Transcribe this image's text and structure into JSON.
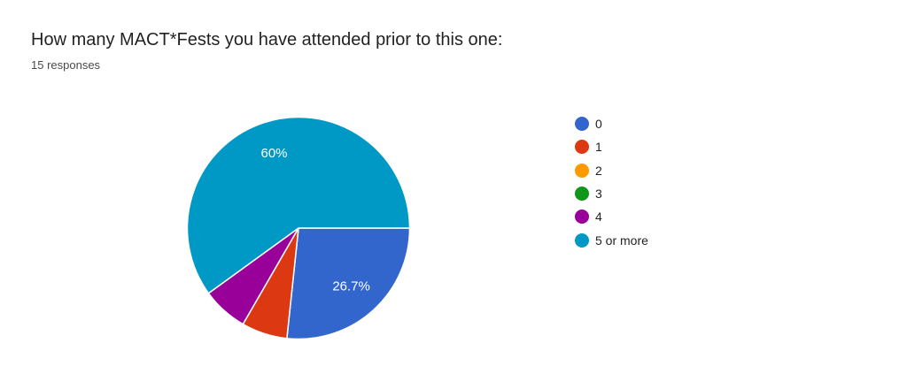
{
  "header": {
    "title": "How many MACT*Fests you have attended prior to this one:",
    "responses_label": "15 responses"
  },
  "chart_data": {
    "type": "pie",
    "title": "How many MACT*Fests you have attended prior to this one:",
    "total_responses": 15,
    "categories": [
      "0",
      "1",
      "2",
      "3",
      "4",
      "5 or more"
    ],
    "values": [
      4,
      1,
      0,
      0,
      1,
      9
    ],
    "percentages": [
      26.7,
      6.7,
      0,
      0,
      6.7,
      60
    ],
    "visible_slice_labels": [
      "26.7%",
      "60%"
    ],
    "colors": [
      "#3366CC",
      "#DC3912",
      "#FF9900",
      "#109618",
      "#990099",
      "#0099C6"
    ],
    "slice_label_color": "#FFFFFF",
    "legend_position": "right",
    "start_angle_deg": 90,
    "min_label_pct": 8
  },
  "legend": {
    "items": [
      {
        "label": "0",
        "color": "#3366CC"
      },
      {
        "label": "1",
        "color": "#DC3912"
      },
      {
        "label": "2",
        "color": "#FF9900"
      },
      {
        "label": "3",
        "color": "#109618"
      },
      {
        "label": "4",
        "color": "#990099"
      },
      {
        "label": "5 or more",
        "color": "#0099C6"
      }
    ]
  }
}
